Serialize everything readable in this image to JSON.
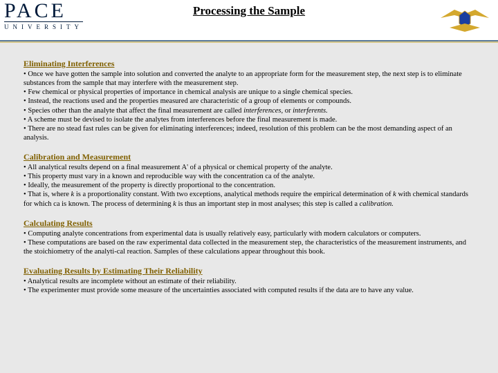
{
  "header": {
    "title": "Processing the Sample",
    "logoLeft": {
      "line1": "PACE",
      "line2": "UNIVERSITY"
    }
  },
  "sections": [
    {
      "heading": "Eliminating Interferences",
      "bullets": [
        "Once we have gotten the sample into solution and converted the analyte to an appropriate form for the measurement step, the next step is to eliminate substances from the sample that may interfere with the measurement step.",
        "Few chemical or physical properties of importance in chemical analysis are unique to a single chemical species.",
        "Instead, the reactions used and the properties measured are characteristic of a group of elements or compounds.",
        "Species other than the analyte that affect the final measurement are called <em>interferences,</em> or <em>interferents.</em>",
        "A scheme must be devised to isolate the analytes from interferences before the final measurement is made.",
        "There are no stead fast rules can be given for eliminating interferences; indeed, resolution of this problem can be the most demanding aspect of an analysis."
      ]
    },
    {
      "heading": "Calibration and Measurement",
      "bullets": [
        "All analytical results depend on a final measurement A' of a physical or chemical property of the analyte.",
        "This property must vary in a known and reproducible way with the concentration ca of the analyte.",
        "Ideally, the measurement of the property is directly proportional to the concentration.",
        "That is, where <em>k</em> is a proportionality constant. With two exceptions, analytical methods require the empirical determination of <em>k</em> with chemical standards for which ca is known. The process of determining <em>k</em> is thus an important step in most analyses; this step is called a <em>calibration.</em>"
      ]
    },
    {
      "heading": "Calculating Results",
      "bullets": [
        "Computing analyte concentrations from experimental data is usually relatively easy, particularly with modern calculators or computers.",
        "These computations are based on the raw experimental data collected in the measurement step, the characteristics of the measurement instruments, and the stoichiometry of the analyti-cal reaction. Samples of these calculations appear throughout this book."
      ]
    },
    {
      "heading": "Evaluating Results by Estimating Their Reliability",
      "bullets": [
        "Analytical results are incomplete without an estimate of their reliability.",
        "The experimenter must provide some measure of the uncertainties associated with computed results if the data are to have any value."
      ]
    }
  ],
  "style": {
    "headingColor": "#806000",
    "badgeColors": {
      "wings": "#d4a82e",
      "shield": "#1a3ea0",
      "border": "#b88a20"
    }
  }
}
